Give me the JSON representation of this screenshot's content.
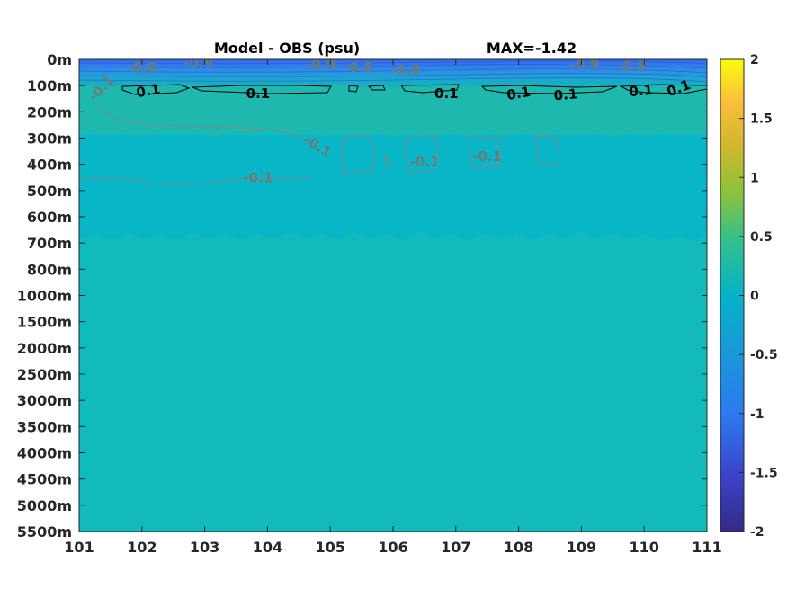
{
  "chart_data": {
    "type": "heatmap",
    "title": "Model - OBS (psu)",
    "subtitle": "MAX=-1.42",
    "x_ticks": [
      "101",
      "102",
      "103",
      "104",
      "105",
      "106",
      "107",
      "108",
      "109",
      "110",
      "111"
    ],
    "xlim": [
      101,
      111
    ],
    "y_ticks": [
      "0m",
      "100m",
      "200m",
      "300m",
      "400m",
      "500m",
      "600m",
      "700m",
      "800m",
      "1000m",
      "1500m",
      "2000m",
      "2500m",
      "3000m",
      "3500m",
      "4000m",
      "4500m",
      "5000m",
      "5500m"
    ],
    "colorbar": {
      "ticks": [
        "2",
        "1.5",
        "1",
        "0.5",
        "0",
        "-0.5",
        "-1",
        "-1.5",
        "-2"
      ],
      "range": [
        -2,
        2
      ],
      "colormap": "parula"
    },
    "field_bands": [
      {
        "depth_range": [
          "0m",
          "100m"
        ],
        "value": -1.0,
        "color": "#3d7bf0"
      },
      {
        "depth_range": [
          "100m",
          "300m"
        ],
        "value": 0.1,
        "color": "#1fb7b0"
      },
      {
        "depth_range": [
          "300m",
          "700m"
        ],
        "value": -0.1,
        "color": "#07b6c6"
      },
      {
        "depth_range": [
          "700m",
          "5500m"
        ],
        "value": 0.05,
        "color": "#12bbbb"
      }
    ],
    "contour_labels": [
      {
        "text": "0.1",
        "x": 102.1,
        "depth_index": 1.2,
        "color": "#000000",
        "rotate": -10
      },
      {
        "text": "0.1",
        "x": 103.85,
        "depth_index": 1.3,
        "color": "#000000",
        "rotate": 0
      },
      {
        "text": "0.1",
        "x": 106.85,
        "depth_index": 1.3,
        "color": "#000000",
        "rotate": 0
      },
      {
        "text": "0.1",
        "x": 108.0,
        "depth_index": 1.3,
        "color": "#000000",
        "rotate": -10
      },
      {
        "text": "0.1",
        "x": 108.75,
        "depth_index": 1.35,
        "color": "#000000",
        "rotate": -5
      },
      {
        "text": "0.1",
        "x": 109.95,
        "depth_index": 1.2,
        "color": "#000000",
        "rotate": -5
      },
      {
        "text": "0.1",
        "x": 110.55,
        "depth_index": 1.1,
        "color": "#000000",
        "rotate": -20
      },
      {
        "text": "-0.1",
        "x": 101.35,
        "depth_index": 1.1,
        "color": "#6b7a7a",
        "rotate": -45
      },
      {
        "text": "-0.1",
        "x": 104.8,
        "depth_index": 3.3,
        "color": "#6b7a7a",
        "rotate": 30
      },
      {
        "text": "-0.1",
        "x": 106.5,
        "depth_index": 3.9,
        "color": "#6b7a7a",
        "rotate": 0
      },
      {
        "text": "-0.1",
        "x": 107.5,
        "depth_index": 3.7,
        "color": "#6b7a7a",
        "rotate": 0
      },
      {
        "text": "-0.1",
        "x": 103.85,
        "depth_index": 4.5,
        "color": "#6b7a7a",
        "rotate": 0
      },
      {
        "text": "-0.8",
        "x": 102.0,
        "depth_index": 0.3,
        "color": "#6b7a7a",
        "rotate": 0
      },
      {
        "text": "-0.9",
        "x": 102.9,
        "depth_index": 0.15,
        "color": "#6b7a7a",
        "rotate": 0
      },
      {
        "text": "-0.9",
        "x": 104.85,
        "depth_index": 0.2,
        "color": "#6b7a7a",
        "rotate": 0
      },
      {
        "text": "-0.8",
        "x": 105.45,
        "depth_index": 0.3,
        "color": "#6b7a7a",
        "rotate": 0
      },
      {
        "text": "-0.8",
        "x": 106.2,
        "depth_index": 0.4,
        "color": "#6b7a7a",
        "rotate": 0
      },
      {
        "text": "-0.9",
        "x": 109.05,
        "depth_index": 0.2,
        "color": "#6b7a7a",
        "rotate": 0
      },
      {
        "text": "-0.8",
        "x": 109.8,
        "depth_index": 0.25,
        "color": "#6b7a7a",
        "rotate": 0
      }
    ]
  }
}
